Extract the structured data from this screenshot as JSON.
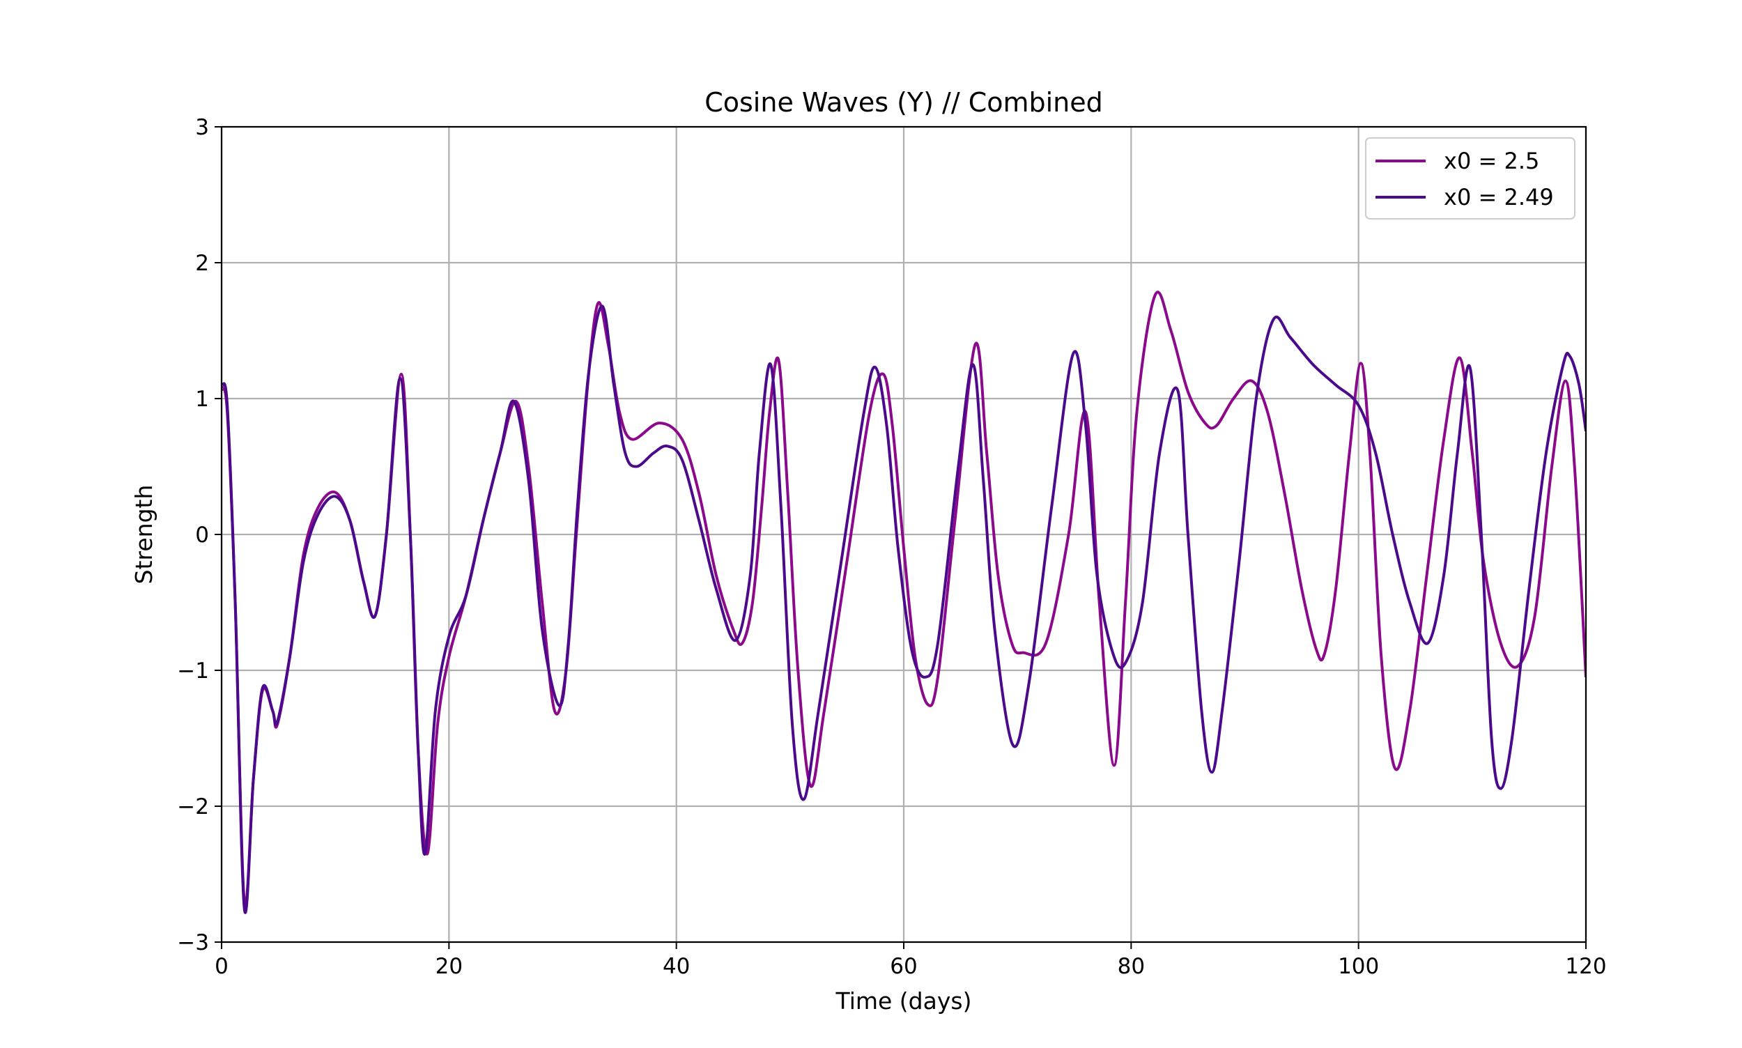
{
  "chart_data": {
    "type": "line",
    "title": "Cosine Waves (Y) // Combined",
    "xlabel": "Time (days)",
    "ylabel": "Strength",
    "xlim": [
      0,
      120
    ],
    "ylim": [
      -3,
      3
    ],
    "grid": true,
    "legend": "upper right",
    "xticks": [
      0,
      20,
      40,
      60,
      80,
      100,
      120
    ],
    "yticks": [
      {
        "value": -3,
        "label": "−3"
      },
      {
        "value": -2,
        "label": "−2"
      },
      {
        "value": -1,
        "label": "−1"
      },
      0,
      1,
      2,
      3
    ],
    "series": [
      {
        "name": "x0 = 2.5",
        "color": "#8b0a8b",
        "x": [
          0,
          0.5,
          1.2,
          2.0,
          2.8,
          3.6,
          4.5,
          4.9,
          6,
          7.2,
          8.5,
          10,
          11.3,
          12.5,
          13.5,
          14.5,
          15.8,
          16.6,
          17.3,
          18.1,
          19,
          20,
          21.5,
          23,
          24.5,
          25.9,
          27,
          28.2,
          29.3,
          30.3,
          31.2,
          32.2,
          33.1,
          34,
          35,
          36.1,
          38.5,
          40.5,
          42,
          43.5,
          45,
          45.8,
          46.7,
          47.5,
          48.2,
          49.0,
          49.8,
          50.7,
          51.8,
          53,
          55,
          57,
          58.2,
          59,
          60,
          61,
          62.1,
          63,
          64.5,
          66.3,
          67.3,
          68.3,
          69.5,
          70.5,
          72.5,
          74.5,
          76,
          77.2,
          78.5,
          79.5,
          80.5,
          82.1,
          83.5,
          85,
          86.5,
          87.5,
          89,
          90.6,
          92,
          93.5,
          95,
          96.3,
          97,
          98,
          99.2,
          100.2,
          101,
          102,
          103.2,
          104.5,
          106,
          107.5,
          108.9,
          110,
          111,
          112.5,
          114,
          115.5,
          117,
          118.2,
          119,
          120
        ],
        "values": [
          1.07,
          0.9,
          -0.5,
          -2.7,
          -1.8,
          -1.15,
          -1.3,
          -1.4,
          -0.9,
          -0.15,
          0.2,
          0.31,
          0.1,
          -0.35,
          -0.6,
          0,
          1.18,
          0,
          -1.6,
          -2.35,
          -1.4,
          -0.9,
          -0.45,
          0.1,
          0.6,
          0.98,
          0.5,
          -0.5,
          -1.3,
          -1.0,
          0,
          1.1,
          1.7,
          1.4,
          0.9,
          0.7,
          0.82,
          0.7,
          0.3,
          -0.3,
          -0.7,
          -0.8,
          -0.5,
          0.2,
          0.9,
          1.28,
          0.3,
          -1.0,
          -1.85,
          -1.3,
          -0.2,
          0.9,
          1.18,
          0.8,
          -0.1,
          -0.9,
          -1.25,
          -1.05,
          0.1,
          1.4,
          0.6,
          -0.3,
          -0.8,
          -0.87,
          -0.8,
          0,
          0.9,
          -0.5,
          -1.7,
          -0.5,
          0.9,
          1.76,
          1.5,
          1.05,
          0.82,
          0.8,
          1.0,
          1.13,
          0.9,
          0.3,
          -0.4,
          -0.85,
          -0.88,
          -0.4,
          0.6,
          1.26,
          0.6,
          -0.9,
          -1.72,
          -1.3,
          -0.3,
          0.7,
          1.3,
          0.6,
          -0.2,
          -0.8,
          -0.97,
          -0.6,
          0.5,
          1.13,
          0.5,
          -1.05
        ]
      },
      {
        "name": "x0 = 2.49",
        "color": "#4b0a8b",
        "x": [
          0,
          0.5,
          1.2,
          2.0,
          2.8,
          3.6,
          4.5,
          4.9,
          6,
          7.2,
          8.5,
          10,
          11.3,
          12.5,
          13.5,
          14.5,
          15.7,
          16.6,
          17.3,
          17.9,
          18.8,
          20,
          21.5,
          23,
          24.5,
          25.7,
          27,
          28.2,
          29.7,
          30.5,
          31.3,
          32.3,
          33.5,
          34.5,
          35.5,
          36.5,
          38,
          39.2,
          40.5,
          42,
          43.5,
          45.2,
          46.5,
          47.3,
          48.3,
          49.2,
          50.2,
          51.2,
          52.5,
          54.5,
          56.5,
          57.5,
          58.5,
          59.5,
          60.7,
          61.9,
          63,
          64.8,
          66.1,
          67,
          68,
          69.6,
          71,
          73,
          74.9,
          76,
          77,
          78.5,
          79.6,
          81,
          82.5,
          84.1,
          85,
          86.2,
          87.1,
          88,
          89.5,
          91,
          92.5,
          94,
          96,
          98,
          100,
          101.5,
          103,
          104.5,
          106.1,
          107.5,
          108.7,
          109.8,
          110.8,
          111.7,
          112.5,
          113.5,
          115,
          116.5,
          118,
          118.6,
          119.4,
          120
        ],
        "values": [
          1.09,
          0.95,
          -0.5,
          -2.75,
          -1.8,
          -1.13,
          -1.3,
          -1.38,
          -0.9,
          -0.2,
          0.15,
          0.28,
          0.1,
          -0.35,
          -0.6,
          0,
          1.15,
          0,
          -1.6,
          -2.35,
          -1.3,
          -0.75,
          -0.45,
          0.1,
          0.6,
          0.98,
          0.4,
          -0.7,
          -1.26,
          -0.8,
          0.2,
          1.2,
          1.68,
          1.1,
          0.6,
          0.5,
          0.6,
          0.65,
          0.55,
          0.1,
          -0.4,
          -0.78,
          -0.3,
          0.6,
          1.25,
          0.2,
          -1.4,
          -1.95,
          -1.3,
          -0.2,
          0.9,
          1.23,
          0.8,
          -0.1,
          -0.85,
          -1.05,
          -0.8,
          0.5,
          1.25,
          0.4,
          -0.7,
          -1.55,
          -1.1,
          0.2,
          1.33,
          0.8,
          -0.3,
          -0.9,
          -0.93,
          -0.5,
          0.6,
          1.06,
          0,
          -1.3,
          -1.75,
          -1.3,
          -0.2,
          1.0,
          1.58,
          1.45,
          1.25,
          1.1,
          0.95,
          0.6,
          0,
          -0.5,
          -0.8,
          -0.3,
          0.6,
          1.23,
          0,
          -1.5,
          -1.87,
          -1.5,
          -0.4,
          0.6,
          1.25,
          1.31,
          1.1,
          0.76
        ]
      }
    ]
  }
}
